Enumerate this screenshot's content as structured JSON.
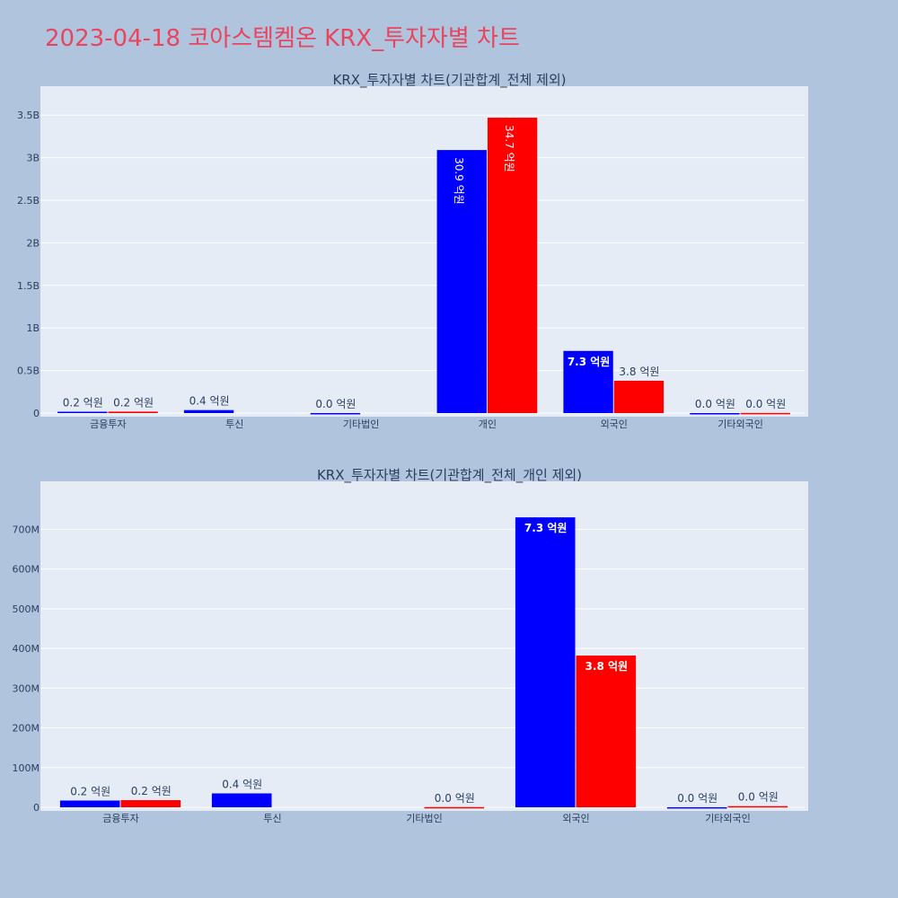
{
  "page": {
    "title": "2023-04-18 코아스템켐온 KRX_투자자별 차트"
  },
  "colors": {
    "background": "#b0c4de",
    "plot_bg": "#e5ecf6",
    "title": "#e8455f",
    "series_blue": "#0000ff",
    "series_red": "#ff0000"
  },
  "chart_data": [
    {
      "type": "bar",
      "title": "KRX_투자자별 차트(기관합계_전체 제외)",
      "categories": [
        "금융투자",
        "투신",
        "기타법인",
        "개인",
        "외국인",
        "기타외국인"
      ],
      "ylim": [
        0,
        3650000000
      ],
      "yticks": [
        {
          "value": 0,
          "label": "0"
        },
        {
          "value": 500000000,
          "label": "0.5B"
        },
        {
          "value": 1000000000,
          "label": "1B"
        },
        {
          "value": 1500000000,
          "label": "1.5B"
        },
        {
          "value": 2000000000,
          "label": "2B"
        },
        {
          "value": 2500000000,
          "label": "2.5B"
        },
        {
          "value": 3000000000,
          "label": "3B"
        },
        {
          "value": 3500000000,
          "label": "3.5B"
        }
      ],
      "grid": true,
      "series": [
        {
          "color": "#0000ff",
          "values": [
            16000000,
            35000000,
            500000,
            3090000000,
            730000000,
            100000
          ],
          "labels": [
            "0.2 억원",
            "0.4 억원",
            "0.0 억원",
            "30.9 억원",
            "7.3 억원",
            "0.0 억원"
          ]
        },
        {
          "color": "#ff0000",
          "values": [
            17000000,
            0,
            0,
            3470000000,
            380000000,
            2000000
          ],
          "labels": [
            "0.2 억원",
            "",
            "",
            "34.7 억원",
            "3.8 억원",
            "0.0 억원"
          ]
        }
      ]
    },
    {
      "type": "bar",
      "title": "KRX_투자자별 차트(기관합계_전체_개인 제외)",
      "categories": [
        "금융투자",
        "투신",
        "기타법인",
        "외국인",
        "기타외국인"
      ],
      "ylim": [
        0,
        780000000
      ],
      "yticks": [
        {
          "value": 0,
          "label": "0"
        },
        {
          "value": 100000000,
          "label": "100M"
        },
        {
          "value": 200000000,
          "label": "200M"
        },
        {
          "value": 300000000,
          "label": "300M"
        },
        {
          "value": 400000000,
          "label": "400M"
        },
        {
          "value": 500000000,
          "label": "500M"
        },
        {
          "value": 600000000,
          "label": "600M"
        },
        {
          "value": 700000000,
          "label": "700M"
        }
      ],
      "grid": true,
      "series": [
        {
          "color": "#0000ff",
          "values": [
            17000000,
            35000000,
            0,
            730000000,
            200000
          ],
          "labels": [
            "0.2 억원",
            "0.4 억원",
            "",
            "7.3 억원",
            "0.0 억원"
          ]
        },
        {
          "color": "#ff0000",
          "values": [
            18000000,
            0,
            500000,
            382000000,
            3000000
          ],
          "labels": [
            "0.2 억원",
            "",
            "0.0 억원",
            "3.8 억원",
            "0.0 억원"
          ]
        }
      ]
    }
  ]
}
